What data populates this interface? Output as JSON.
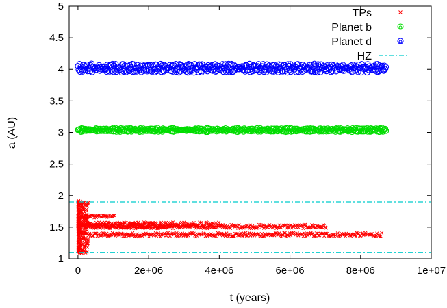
{
  "chart_data": {
    "type": "scatter",
    "xlabel": "t (years)",
    "ylabel": "a (AU)",
    "xlim": [
      -250000,
      10000000
    ],
    "ylim": [
      1,
      5
    ],
    "x_ticks": [
      0,
      2000000,
      4000000,
      6000000,
      8000000,
      10000000
    ],
    "x_tick_labels": [
      "0",
      "2e+06",
      "4e+06",
      "6e+06",
      "8e+06",
      "1e+07"
    ],
    "y_ticks": [
      1,
      1.5,
      2,
      2.5,
      3,
      3.5,
      4,
      4.5,
      5
    ],
    "y_tick_labels": [
      "1",
      "1.5",
      "2",
      "2.5",
      "3",
      "3.5",
      "4",
      "4.5",
      "5"
    ],
    "legend_position": "top-right",
    "grid": false,
    "series": [
      {
        "name": "TPs",
        "marker": "x",
        "color": "#ff0000",
        "tracks": [
          {
            "x_start": 0,
            "x_end": 8600000,
            "y": 1.38,
            "spread": 0.03
          },
          {
            "x_start": 0,
            "x_end": 7050000,
            "y": 1.51,
            "spread": 0.03
          },
          {
            "x_start": 0,
            "x_end": 1050000,
            "y": 1.67,
            "spread": 0.02
          },
          {
            "x_start": 0,
            "x_end": 2600000,
            "y": 1.53,
            "spread": 0.05
          },
          {
            "x_start": 0,
            "x_end": 4100000,
            "y": 1.54,
            "spread": 0.04
          }
        ],
        "early_burst": {
          "x_start": 0,
          "x_end": 300000,
          "y_min": 1.08,
          "y_max": 1.92
        }
      },
      {
        "name": "Planet b",
        "marker": "circle",
        "color": "#00dd00",
        "tracks": [
          {
            "x_start": 0,
            "x_end": 8700000,
            "y": 3.04,
            "spread": 0.03
          }
        ]
      },
      {
        "name": "Planet d",
        "marker": "circle",
        "color": "#0000ff",
        "tracks": [
          {
            "x_start": 0,
            "x_end": 8700000,
            "y": 4.02,
            "spread": 0.07
          }
        ]
      },
      {
        "name": "HZ",
        "marker": "dash-dot line",
        "color": "#00cccc",
        "lines": [
          {
            "y": 1.9
          },
          {
            "y": 1.1
          }
        ]
      }
    ]
  }
}
